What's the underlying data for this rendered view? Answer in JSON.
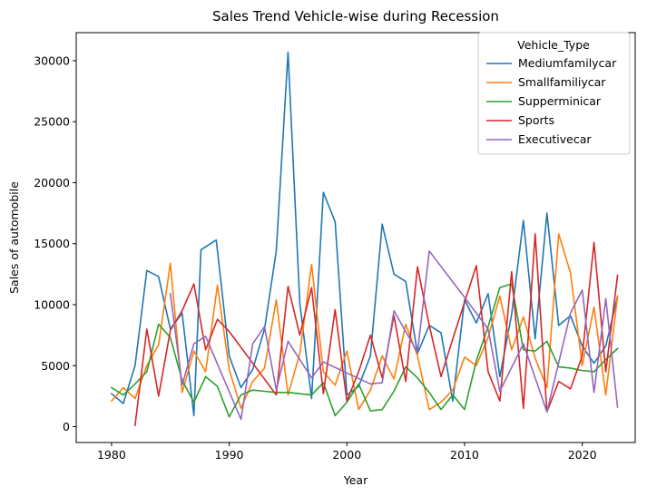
{
  "chart_data": {
    "type": "line",
    "title": "Sales Trend Vehicle-wise during Recession",
    "xlabel": "Year",
    "ylabel": "Sales of automobile",
    "xlim": [
      1977,
      2024.5
    ],
    "ylim": [
      -1300,
      32300
    ],
    "xticks": [
      1980,
      1990,
      2000,
      2010,
      2020
    ],
    "yticks": [
      0,
      5000,
      10000,
      15000,
      20000,
      25000,
      30000
    ],
    "legend_title": "Vehicle_Type",
    "legend_position": "top-right",
    "series": [
      {
        "name": "Mediumfamilycar",
        "color": "#1f77b4",
        "points": [
          [
            1980,
            2700
          ],
          [
            1981,
            1900
          ],
          [
            1982,
            5000
          ],
          [
            1983,
            12800
          ],
          [
            1984,
            12300
          ],
          [
            1985,
            8000
          ],
          [
            1986,
            9300
          ],
          [
            1987,
            900
          ],
          [
            1987.6,
            14500
          ],
          [
            1988.9,
            15300
          ],
          [
            1990,
            5800
          ],
          [
            1991,
            3200
          ],
          [
            1992,
            4700
          ],
          [
            1993,
            8000
          ],
          [
            1994,
            14400
          ],
          [
            1995,
            30700
          ],
          [
            1996,
            10100
          ],
          [
            1997,
            2300
          ],
          [
            1998,
            19200
          ],
          [
            1999,
            16800
          ],
          [
            2000,
            2600
          ],
          [
            2001,
            3300
          ],
          [
            2002,
            5800
          ],
          [
            2003,
            16600
          ],
          [
            2004,
            12500
          ],
          [
            2005,
            11900
          ],
          [
            2006,
            6000
          ],
          [
            2007,
            8300
          ],
          [
            2008,
            7700
          ],
          [
            2009,
            2100
          ],
          [
            2010,
            10400
          ],
          [
            2011,
            8500
          ],
          [
            2012,
            10900
          ],
          [
            2013,
            4100
          ],
          [
            2014,
            9200
          ],
          [
            2015,
            16900
          ],
          [
            2016,
            7200
          ],
          [
            2017,
            17500
          ],
          [
            2018,
            8300
          ],
          [
            2019,
            9100
          ],
          [
            2020,
            6600
          ],
          [
            2021,
            5200
          ],
          [
            2022,
            6600
          ],
          [
            2023,
            10700
          ]
        ]
      },
      {
        "name": "Smallfamiliycar",
        "color": "#ff7f0e",
        "points": [
          [
            1980,
            2100
          ],
          [
            1981,
            3200
          ],
          [
            1982,
            2300
          ],
          [
            1983,
            5000
          ],
          [
            1984,
            6700
          ],
          [
            1985,
            13400
          ],
          [
            1986,
            2800
          ],
          [
            1987,
            6200
          ],
          [
            1988,
            4500
          ],
          [
            1989,
            11600
          ],
          [
            1990,
            4700
          ],
          [
            1991,
            1500
          ],
          [
            1992,
            3700
          ],
          [
            1993,
            4800
          ],
          [
            1994,
            10400
          ],
          [
            1995,
            2600
          ],
          [
            1996,
            6000
          ],
          [
            1997,
            13300
          ],
          [
            1998,
            4500
          ],
          [
            1999,
            3400
          ],
          [
            2000,
            6200
          ],
          [
            2001,
            1400
          ],
          [
            2002,
            3000
          ],
          [
            2003,
            5800
          ],
          [
            2004,
            3900
          ],
          [
            2005,
            8400
          ],
          [
            2006,
            5800
          ],
          [
            2007,
            1400
          ],
          [
            2008,
            2000
          ],
          [
            2009,
            3000
          ],
          [
            2010,
            5700
          ],
          [
            2011,
            5000
          ],
          [
            2012,
            7300
          ],
          [
            2013,
            10700
          ],
          [
            2014,
            6300
          ],
          [
            2015,
            9000
          ],
          [
            2016,
            5600
          ],
          [
            2017,
            3200
          ],
          [
            2018,
            15800
          ],
          [
            2019,
            12600
          ],
          [
            2020,
            5000
          ],
          [
            2021,
            9800
          ],
          [
            2022,
            2600
          ],
          [
            2023,
            10700
          ]
        ]
      },
      {
        "name": "Supperminicar",
        "color": "#2ca02c",
        "points": [
          [
            1980,
            3200
          ],
          [
            1981,
            2600
          ],
          [
            1982,
            3500
          ],
          [
            1983,
            4500
          ],
          [
            1984,
            8400
          ],
          [
            1985,
            7300
          ],
          [
            1986,
            3800
          ],
          [
            1987,
            2000
          ],
          [
            1988,
            4100
          ],
          [
            1989,
            3300
          ],
          [
            1990,
            800
          ],
          [
            1991,
            2600
          ],
          [
            1992,
            3000
          ],
          [
            1993,
            2900
          ],
          [
            1994,
            2800
          ],
          [
            1995,
            2800
          ],
          [
            1996,
            2700
          ],
          [
            1997,
            2600
          ],
          [
            1998,
            3600
          ],
          [
            1999,
            900
          ],
          [
            2000,
            2000
          ],
          [
            2001,
            3500
          ],
          [
            2002,
            1300
          ],
          [
            2003,
            1400
          ],
          [
            2004,
            2900
          ],
          [
            2005,
            4900
          ],
          [
            2006,
            4000
          ],
          [
            2007,
            2800
          ],
          [
            2008,
            1400
          ],
          [
            2009,
            2600
          ],
          [
            2010,
            1400
          ],
          [
            2011,
            5400
          ],
          [
            2012,
            8200
          ],
          [
            2013,
            11400
          ],
          [
            2014,
            11700
          ],
          [
            2015,
            6300
          ],
          [
            2016,
            6200
          ],
          [
            2017,
            7000
          ],
          [
            2018,
            4900
          ],
          [
            2019,
            4800
          ],
          [
            2020,
            4600
          ],
          [
            2021,
            4500
          ],
          [
            2022,
            5500
          ],
          [
            2023,
            6400
          ]
        ]
      },
      {
        "name": "Sports",
        "color": "#d62728",
        "points": [
          [
            1982,
            100
          ],
          [
            1983,
            8000
          ],
          [
            1984,
            2500
          ],
          [
            1985,
            7900
          ],
          [
            1986,
            9500
          ],
          [
            1987,
            11700
          ],
          [
            1988,
            6300
          ],
          [
            1989,
            8800
          ],
          [
            1990,
            7800
          ],
          [
            1994,
            2600
          ],
          [
            1995,
            11500
          ],
          [
            1996,
            7500
          ],
          [
            1997,
            11400
          ],
          [
            1998,
            2700
          ],
          [
            1999,
            9600
          ],
          [
            2000,
            2100
          ],
          [
            2001,
            4500
          ],
          [
            2002,
            7500
          ],
          [
            2003,
            4000
          ],
          [
            2004,
            9100
          ],
          [
            2005,
            3700
          ],
          [
            2006,
            13100
          ],
          [
            2007,
            8300
          ],
          [
            2008,
            4100
          ],
          [
            2009,
            7200
          ],
          [
            2010,
            10200
          ],
          [
            2011,
            13200
          ],
          [
            2012,
            4500
          ],
          [
            2013,
            2100
          ],
          [
            2014,
            12700
          ],
          [
            2015,
            1500
          ],
          [
            2016,
            15800
          ],
          [
            2017,
            1200
          ],
          [
            2018,
            3700
          ],
          [
            2019,
            3100
          ],
          [
            2020,
            5800
          ],
          [
            2021,
            15100
          ],
          [
            2022,
            4500
          ],
          [
            2023,
            12400
          ]
        ]
      },
      {
        "name": "Executivecar",
        "color": "#9467bd",
        "points": [
          [
            1985,
            10900
          ],
          [
            1986,
            3400
          ],
          [
            1987,
            6800
          ],
          [
            1988,
            7400
          ],
          [
            1991,
            600
          ],
          [
            1992,
            6800
          ],
          [
            1993,
            8200
          ],
          [
            1994,
            3000
          ],
          [
            1995,
            7000
          ],
          [
            1997,
            4000
          ],
          [
            1998,
            5300
          ],
          [
            2000,
            4400
          ],
          [
            2002,
            3500
          ],
          [
            2003,
            3600
          ],
          [
            2004,
            9500
          ],
          [
            2006,
            6100
          ],
          [
            2007,
            14400
          ],
          [
            2010,
            10600
          ],
          [
            2012,
            8000
          ],
          [
            2013,
            2900
          ],
          [
            2015,
            6800
          ],
          [
            2017,
            1200
          ],
          [
            2019,
            9300
          ],
          [
            2020,
            11200
          ],
          [
            2021,
            2800
          ],
          [
            2022,
            10500
          ],
          [
            2023,
            1600
          ]
        ]
      }
    ]
  }
}
